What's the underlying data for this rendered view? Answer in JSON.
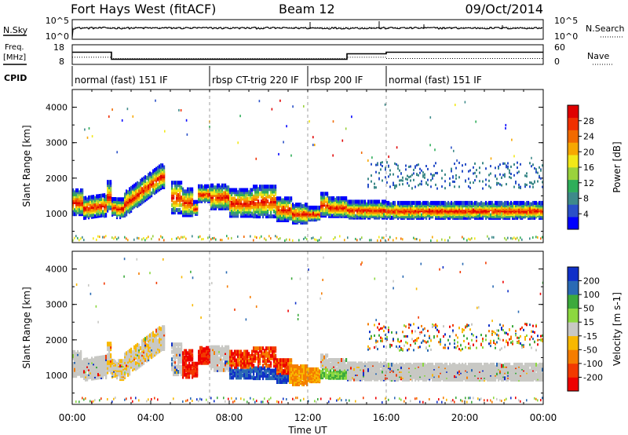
{
  "header": {
    "radar": "Fort Hays West (fitACF)",
    "beam": "Beam 12",
    "date": "09/Oct/2014"
  },
  "noise_panel": {
    "left_label": "N.Sky",
    "right_label": "N.Search",
    "left_ticks": [
      "10^5",
      "10^0"
    ],
    "right_ticks": [
      "10^5",
      "10^0"
    ]
  },
  "freq_panel": {
    "left_label_line1": "Freq.",
    "left_label_line2": "[MHz]",
    "right_label": "Nave",
    "left_ticks": [
      "18",
      "8"
    ],
    "right_ticks": [
      "60",
      "0"
    ],
    "freq_steps": [
      {
        "from": 0,
        "to": 2.0,
        "mhz": 14.2
      },
      {
        "from": 2.0,
        "to": 14.0,
        "mhz": 10.6
      },
      {
        "from": 14.0,
        "to": 16.0,
        "mhz": 13.4
      },
      {
        "from": 16.0,
        "to": 24.0,
        "mhz": 14.2
      }
    ],
    "nave_steps": [
      {
        "from": 0,
        "to": 2.0,
        "nave": 22
      },
      {
        "from": 2.0,
        "to": 14.0,
        "nave": 18
      },
      {
        "from": 14.0,
        "to": 16.0,
        "nave": 22
      },
      {
        "from": 16.0,
        "to": 24.0,
        "nave": 18
      }
    ]
  },
  "cpid": {
    "label": "CPID",
    "segments": [
      {
        "start": 0.0,
        "end": 7.0,
        "label": "normal (fast) 151 IF"
      },
      {
        "start": 7.0,
        "end": 12.0,
        "label": "rbsp CT-trig 220 IF"
      },
      {
        "start": 12.0,
        "end": 16.0,
        "label": "rbsp 200 IF"
      },
      {
        "start": 16.0,
        "end": 24.0,
        "label": "normal (fast) 151 IF"
      }
    ]
  },
  "time_axis": {
    "label": "Time UT",
    "ticks": [
      "00:00",
      "04:00",
      "08:00",
      "12:00",
      "16:00",
      "20:00",
      "00:00"
    ]
  },
  "chart_data": [
    {
      "type": "heatmap",
      "parameter": "Power",
      "ylabel": "Slant Range [km]",
      "yticks": [
        "1000",
        "2000",
        "3000",
        "4000"
      ],
      "ylim": [
        180,
        4500
      ],
      "xlim": [
        0,
        24
      ],
      "colorbar_label": "Power [dB]",
      "colorbar_ticks": [
        "28",
        "24",
        "20",
        "16",
        "12",
        "8",
        "4"
      ],
      "colorbar_colors": [
        "#0000ff",
        "#2a50c8",
        "#3e8a8a",
        "#2fae5a",
        "#9ad23c",
        "#f2e818",
        "#f7a800",
        "#f26a00",
        "#f03000",
        "#e00000"
      ]
    },
    {
      "type": "heatmap",
      "parameter": "Velocity",
      "ylabel": "Slant Range [km]",
      "yticks": [
        "1000",
        "2000",
        "3000",
        "4000"
      ],
      "ylim": [
        180,
        4500
      ],
      "xlim": [
        0,
        24
      ],
      "colorbar_label": "Velocity [m s-1]",
      "colorbar_ticks": [
        "200",
        "100",
        "50",
        "15",
        "-15",
        "-50",
        "-100",
        "-200"
      ],
      "colorbar_colors": [
        "#ee0000",
        "#f23a00",
        "#f57d00",
        "#f8b800",
        "#c8c8c4",
        "#8cd840",
        "#3caa3c",
        "#2a6ab4",
        "#1030c8"
      ]
    }
  ]
}
